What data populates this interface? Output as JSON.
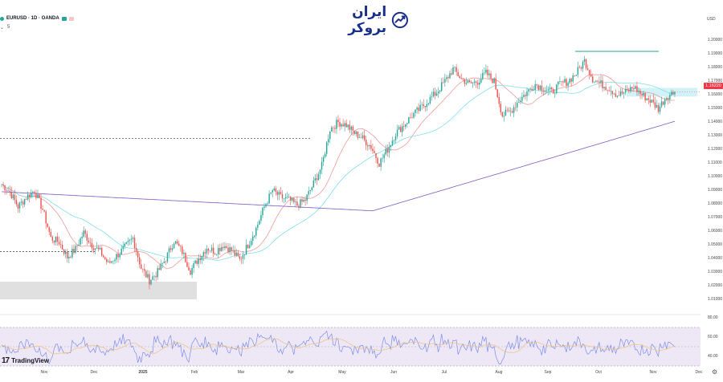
{
  "header": {
    "symbol": "EURUSD · 1D · OANDA",
    "badges": [
      {
        "color": "#26a69a"
      },
      {
        "color": "#f7c6c6"
      }
    ],
    "sub_text": "5"
  },
  "logo": {
    "text": "ایران بروکر",
    "icon": "chart-trend-icon",
    "color": "#1a2f8a"
  },
  "branding": {
    "name": "TradingView",
    "mark": "17"
  },
  "currency_label": "USD",
  "current_price": "1.16220",
  "colors": {
    "up": "#26a69a",
    "down": "#ef5350",
    "ma_fast": "#ef9a9a",
    "ma_mid": "#80deea",
    "ma_slow": "#7e57c2",
    "rsi": "#7e8ee8",
    "rsi_ma": "#f0c27a",
    "rsi_band": "#ede7f6",
    "zone": "#e0e0e0"
  },
  "chart_data": {
    "type": "candlestick",
    "symbol": "EURUSD",
    "timeframe": "1D",
    "source": "OANDA",
    "ylim": [
      1.003,
      1.212
    ],
    "y_ticks": [
      "1.20000",
      "1.19000",
      "1.18000",
      "1.17000",
      "1.16000",
      "1.15000",
      "1.14000",
      "1.13000",
      "1.12000",
      "1.11000",
      "1.10000",
      "1.09000",
      "1.08000",
      "1.07000",
      "1.06000",
      "1.05000",
      "1.04000",
      "1.03000",
      "1.02000",
      "1.01000"
    ],
    "x_ticks": [
      "Nov",
      "Dec",
      "2025",
      "Feb",
      "Mar",
      "Apr",
      "May",
      "Jun",
      "Jul",
      "Aug",
      "Sep",
      "Oct",
      "Nov",
      "Dec"
    ],
    "anchors": [
      1.0945,
      1.089,
      1.078,
      1.085,
      1.09,
      1.076,
      1.055,
      1.052,
      1.041,
      1.047,
      1.059,
      1.05,
      1.045,
      1.036,
      1.042,
      1.048,
      1.055,
      1.033,
      1.024,
      1.03,
      1.04,
      1.053,
      1.045,
      1.031,
      1.04,
      1.048,
      1.045,
      1.05,
      1.046,
      1.039,
      1.05,
      1.062,
      1.078,
      1.09,
      1.085,
      1.083,
      1.079,
      1.083,
      1.095,
      1.108,
      1.135,
      1.14,
      1.138,
      1.132,
      1.128,
      1.122,
      1.11,
      1.12,
      1.132,
      1.138,
      1.145,
      1.15,
      1.156,
      1.162,
      1.17,
      1.179,
      1.172,
      1.168,
      1.17,
      1.176,
      1.17,
      1.145,
      1.148,
      1.156,
      1.162,
      1.168,
      1.165,
      1.162,
      1.168,
      1.17,
      1.176,
      1.185,
      1.172,
      1.168,
      1.165,
      1.16,
      1.162,
      1.166,
      1.16,
      1.156,
      1.15,
      1.159,
      1.1622
    ],
    "levels": [
      {
        "name": "resistance-1",
        "price": 1.192
      },
      {
        "name": "dashed-level-1",
        "price": 1.128
      },
      {
        "name": "dashed-level-2",
        "price": 1.045
      }
    ],
    "supply_zone": [
      1.16,
      1.164
    ],
    "demand_zone": [
      1.01,
      1.023
    ],
    "rsi": {
      "ylim": [
        30,
        80
      ],
      "ticks": [
        "80.00",
        "60.00",
        "40.00"
      ],
      "overbought": 70,
      "oversold": 30
    }
  }
}
